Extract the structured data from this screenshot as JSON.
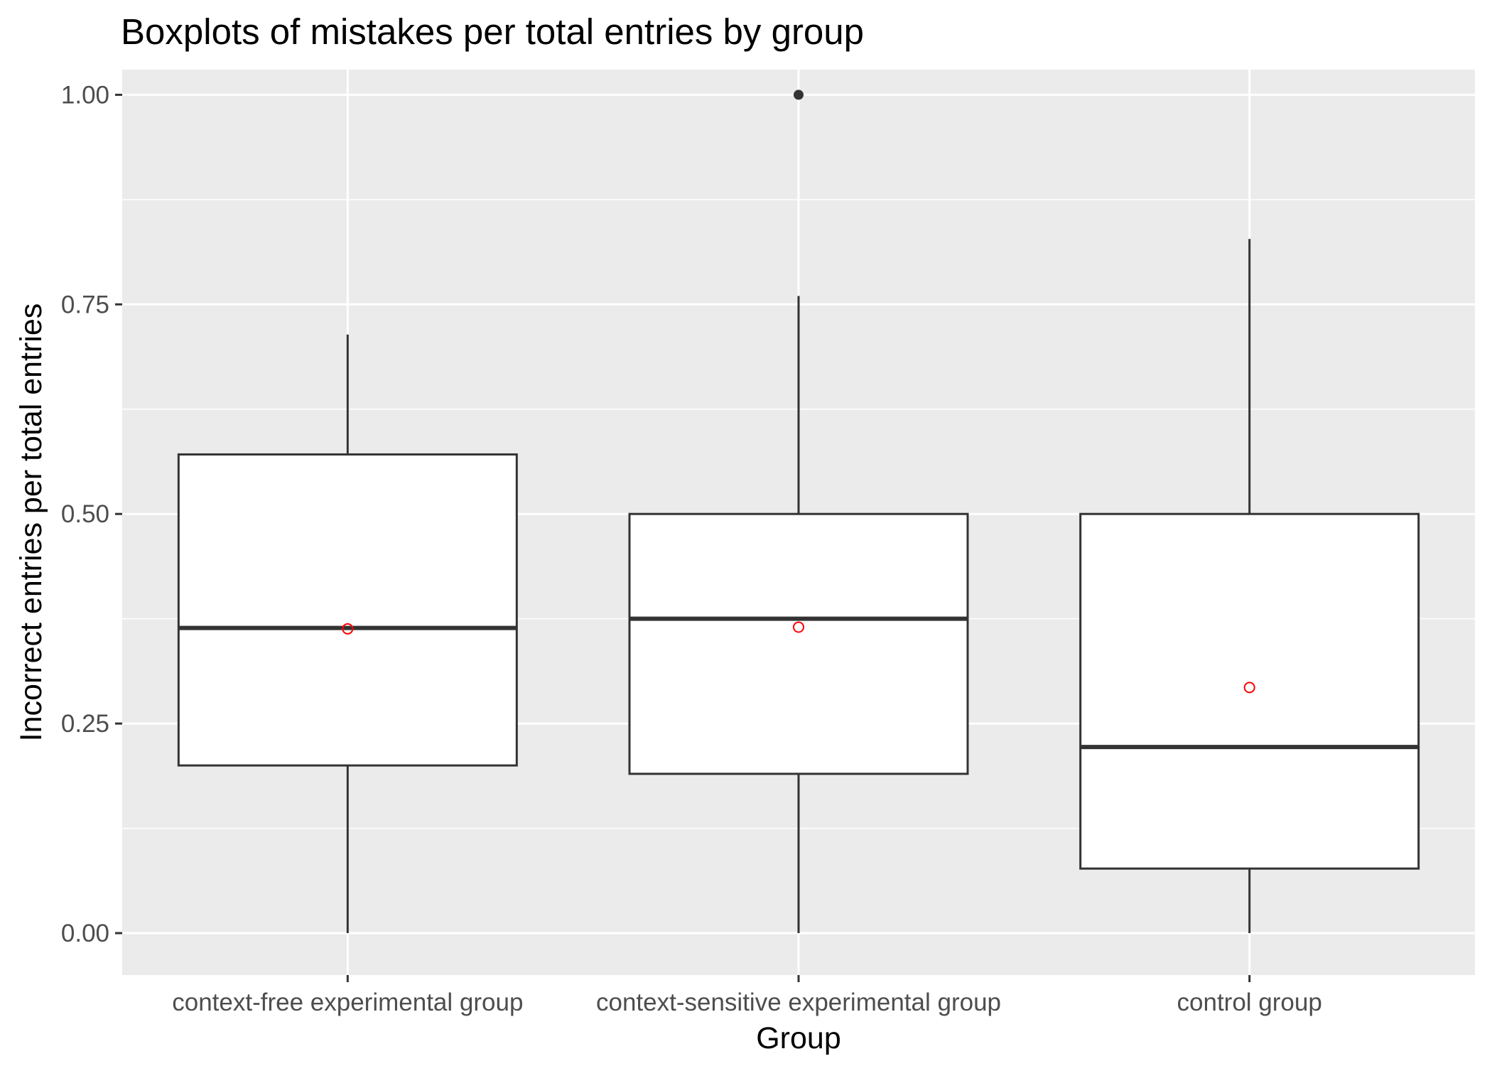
{
  "chart_data": {
    "type": "boxplot",
    "title": "Boxplots of  mistakes per total entries by group",
    "xlabel": "Group",
    "ylabel": "Incorrect entries per total entries",
    "ylim": [
      -0.05,
      1.03
    ],
    "y_ticks": [
      "0.00",
      "0.25",
      "0.50",
      "0.75",
      "1.00"
    ],
    "y_tick_values": [
      0,
      0.25,
      0.5,
      0.75,
      1.0
    ],
    "grid": true,
    "legend": "none",
    "categories": [
      "context-free experimental group",
      "context-sensitive experimental group",
      "control group"
    ],
    "boxes": [
      {
        "min": 0.0,
        "q1": 0.2,
        "median": 0.364,
        "q3": 0.571,
        "max": 0.714,
        "mean": 0.363,
        "outliers": []
      },
      {
        "min": 0.0,
        "q1": 0.19,
        "median": 0.375,
        "q3": 0.5,
        "max": 0.76,
        "mean": 0.365,
        "outliers": [
          1.0
        ]
      },
      {
        "min": 0.0,
        "q1": 0.077,
        "median": 0.222,
        "q3": 0.5,
        "max": 0.828,
        "mean": 0.293,
        "outliers": []
      }
    ],
    "colors": {
      "panel": "#ebebeb",
      "grid": "#ffffff",
      "box_fill": "#ffffff",
      "box_line": "#333333",
      "mean_marker": "#ff0000",
      "tick": "#333333"
    }
  }
}
